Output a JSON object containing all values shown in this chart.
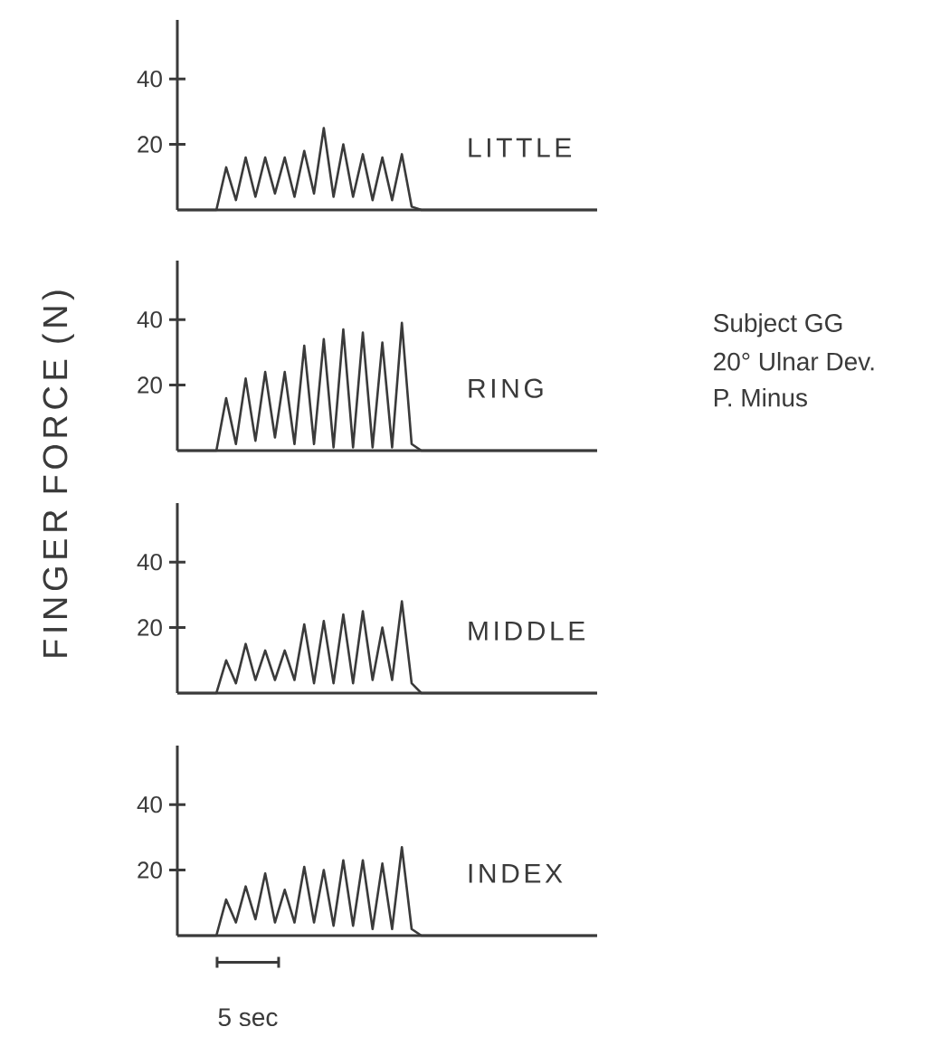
{
  "chart_data": [
    {
      "type": "line",
      "categories": [
        null,
        null,
        null,
        null,
        null,
        null,
        null,
        null,
        null,
        null,
        null,
        null,
        null,
        null,
        null,
        null,
        null,
        null,
        null,
        null,
        null,
        null,
        null,
        null,
        null,
        null,
        null,
        null,
        null,
        null,
        null,
        null,
        null,
        null,
        null,
        null,
        null,
        null,
        null,
        null,
        null,
        null,
        null,
        null
      ],
      "ylim": [
        0,
        58
      ],
      "yticks": [
        20,
        40
      ],
      "tick_labels": "y",
      "legend": false,
      "marker": "none",
      "line_style": "solid",
      "series": [
        {
          "name": "LITTLE",
          "color": "#3a3a3a",
          "values": [
            0,
            0,
            0,
            0,
            0,
            13,
            3,
            16,
            4,
            16,
            5,
            16,
            4,
            18,
            5,
            25,
            4,
            20,
            4,
            17,
            3,
            16,
            3,
            17,
            1,
            0,
            0,
            0,
            0,
            0,
            0,
            0,
            0,
            0,
            0,
            0,
            0,
            0,
            0,
            0,
            0,
            0,
            0,
            0
          ]
        }
      ]
    },
    {
      "type": "line",
      "categories": [
        null,
        null,
        null,
        null,
        null,
        null,
        null,
        null,
        null,
        null,
        null,
        null,
        null,
        null,
        null,
        null,
        null,
        null,
        null,
        null,
        null,
        null,
        null,
        null,
        null,
        null,
        null,
        null,
        null,
        null,
        null,
        null,
        null,
        null,
        null,
        null,
        null,
        null,
        null,
        null,
        null,
        null,
        null,
        null
      ],
      "ylim": [
        0,
        58
      ],
      "yticks": [
        20,
        40
      ],
      "tick_labels": "y",
      "legend": false,
      "marker": "none",
      "line_style": "solid",
      "ylabel": "FINGER FORCE (N)",
      "annotations": [
        "Subject GG",
        "20° Ulnar Dev.",
        "P. Minus"
      ],
      "series": [
        {
          "name": "RING",
          "color": "#3a3a3a",
          "values": [
            0,
            0,
            0,
            0,
            0,
            16,
            2,
            22,
            3,
            24,
            4,
            24,
            2,
            32,
            2,
            34,
            1,
            37,
            1,
            36,
            1,
            33,
            1,
            39,
            2,
            0,
            0,
            0,
            0,
            0,
            0,
            0,
            0,
            0,
            0,
            0,
            0,
            0,
            0,
            0,
            0,
            0,
            0,
            0
          ]
        }
      ]
    },
    {
      "type": "line",
      "categories": [
        null,
        null,
        null,
        null,
        null,
        null,
        null,
        null,
        null,
        null,
        null,
        null,
        null,
        null,
        null,
        null,
        null,
        null,
        null,
        null,
        null,
        null,
        null,
        null,
        null,
        null,
        null,
        null,
        null,
        null,
        null,
        null,
        null,
        null,
        null,
        null,
        null,
        null,
        null,
        null,
        null,
        null,
        null,
        null
      ],
      "ylim": [
        0,
        58
      ],
      "yticks": [
        20,
        40
      ],
      "tick_labels": "y",
      "legend": false,
      "marker": "none",
      "line_style": "solid",
      "series": [
        {
          "name": "MIDDLE",
          "color": "#3a3a3a",
          "values": [
            0,
            0,
            0,
            0,
            0,
            10,
            3,
            15,
            4,
            13,
            4,
            13,
            4,
            21,
            3,
            22,
            3,
            24,
            3,
            25,
            4,
            20,
            4,
            28,
            3,
            0,
            0,
            0,
            0,
            0,
            0,
            0,
            0,
            0,
            0,
            0,
            0,
            0,
            0,
            0,
            0,
            0,
            0,
            0
          ]
        }
      ]
    },
    {
      "type": "line",
      "categories": [
        null,
        null,
        null,
        null,
        null,
        null,
        null,
        null,
        null,
        null,
        null,
        null,
        null,
        null,
        null,
        null,
        null,
        null,
        null,
        null,
        null,
        null,
        null,
        null,
        null,
        null,
        null,
        null,
        null,
        null,
        null,
        null,
        null,
        null,
        null,
        null,
        null,
        null,
        null,
        null,
        null,
        null,
        null,
        null
      ],
      "ylim": [
        0,
        58
      ],
      "yticks": [
        20,
        40
      ],
      "tick_labels": "y",
      "legend": false,
      "marker": "none",
      "line_style": "solid",
      "annotations": [
        "5 sec"
      ],
      "series": [
        {
          "name": "INDEX",
          "color": "#3a3a3a",
          "values": [
            0,
            0,
            0,
            0,
            0,
            11,
            4,
            15,
            5,
            19,
            4,
            14,
            4,
            21,
            4,
            20,
            3,
            23,
            3,
            23,
            2,
            22,
            2,
            27,
            2,
            0,
            0,
            0,
            0,
            0,
            0,
            0,
            0,
            0,
            0,
            0,
            0,
            0,
            0,
            0,
            0,
            0,
            0,
            0
          ]
        }
      ]
    }
  ]
}
